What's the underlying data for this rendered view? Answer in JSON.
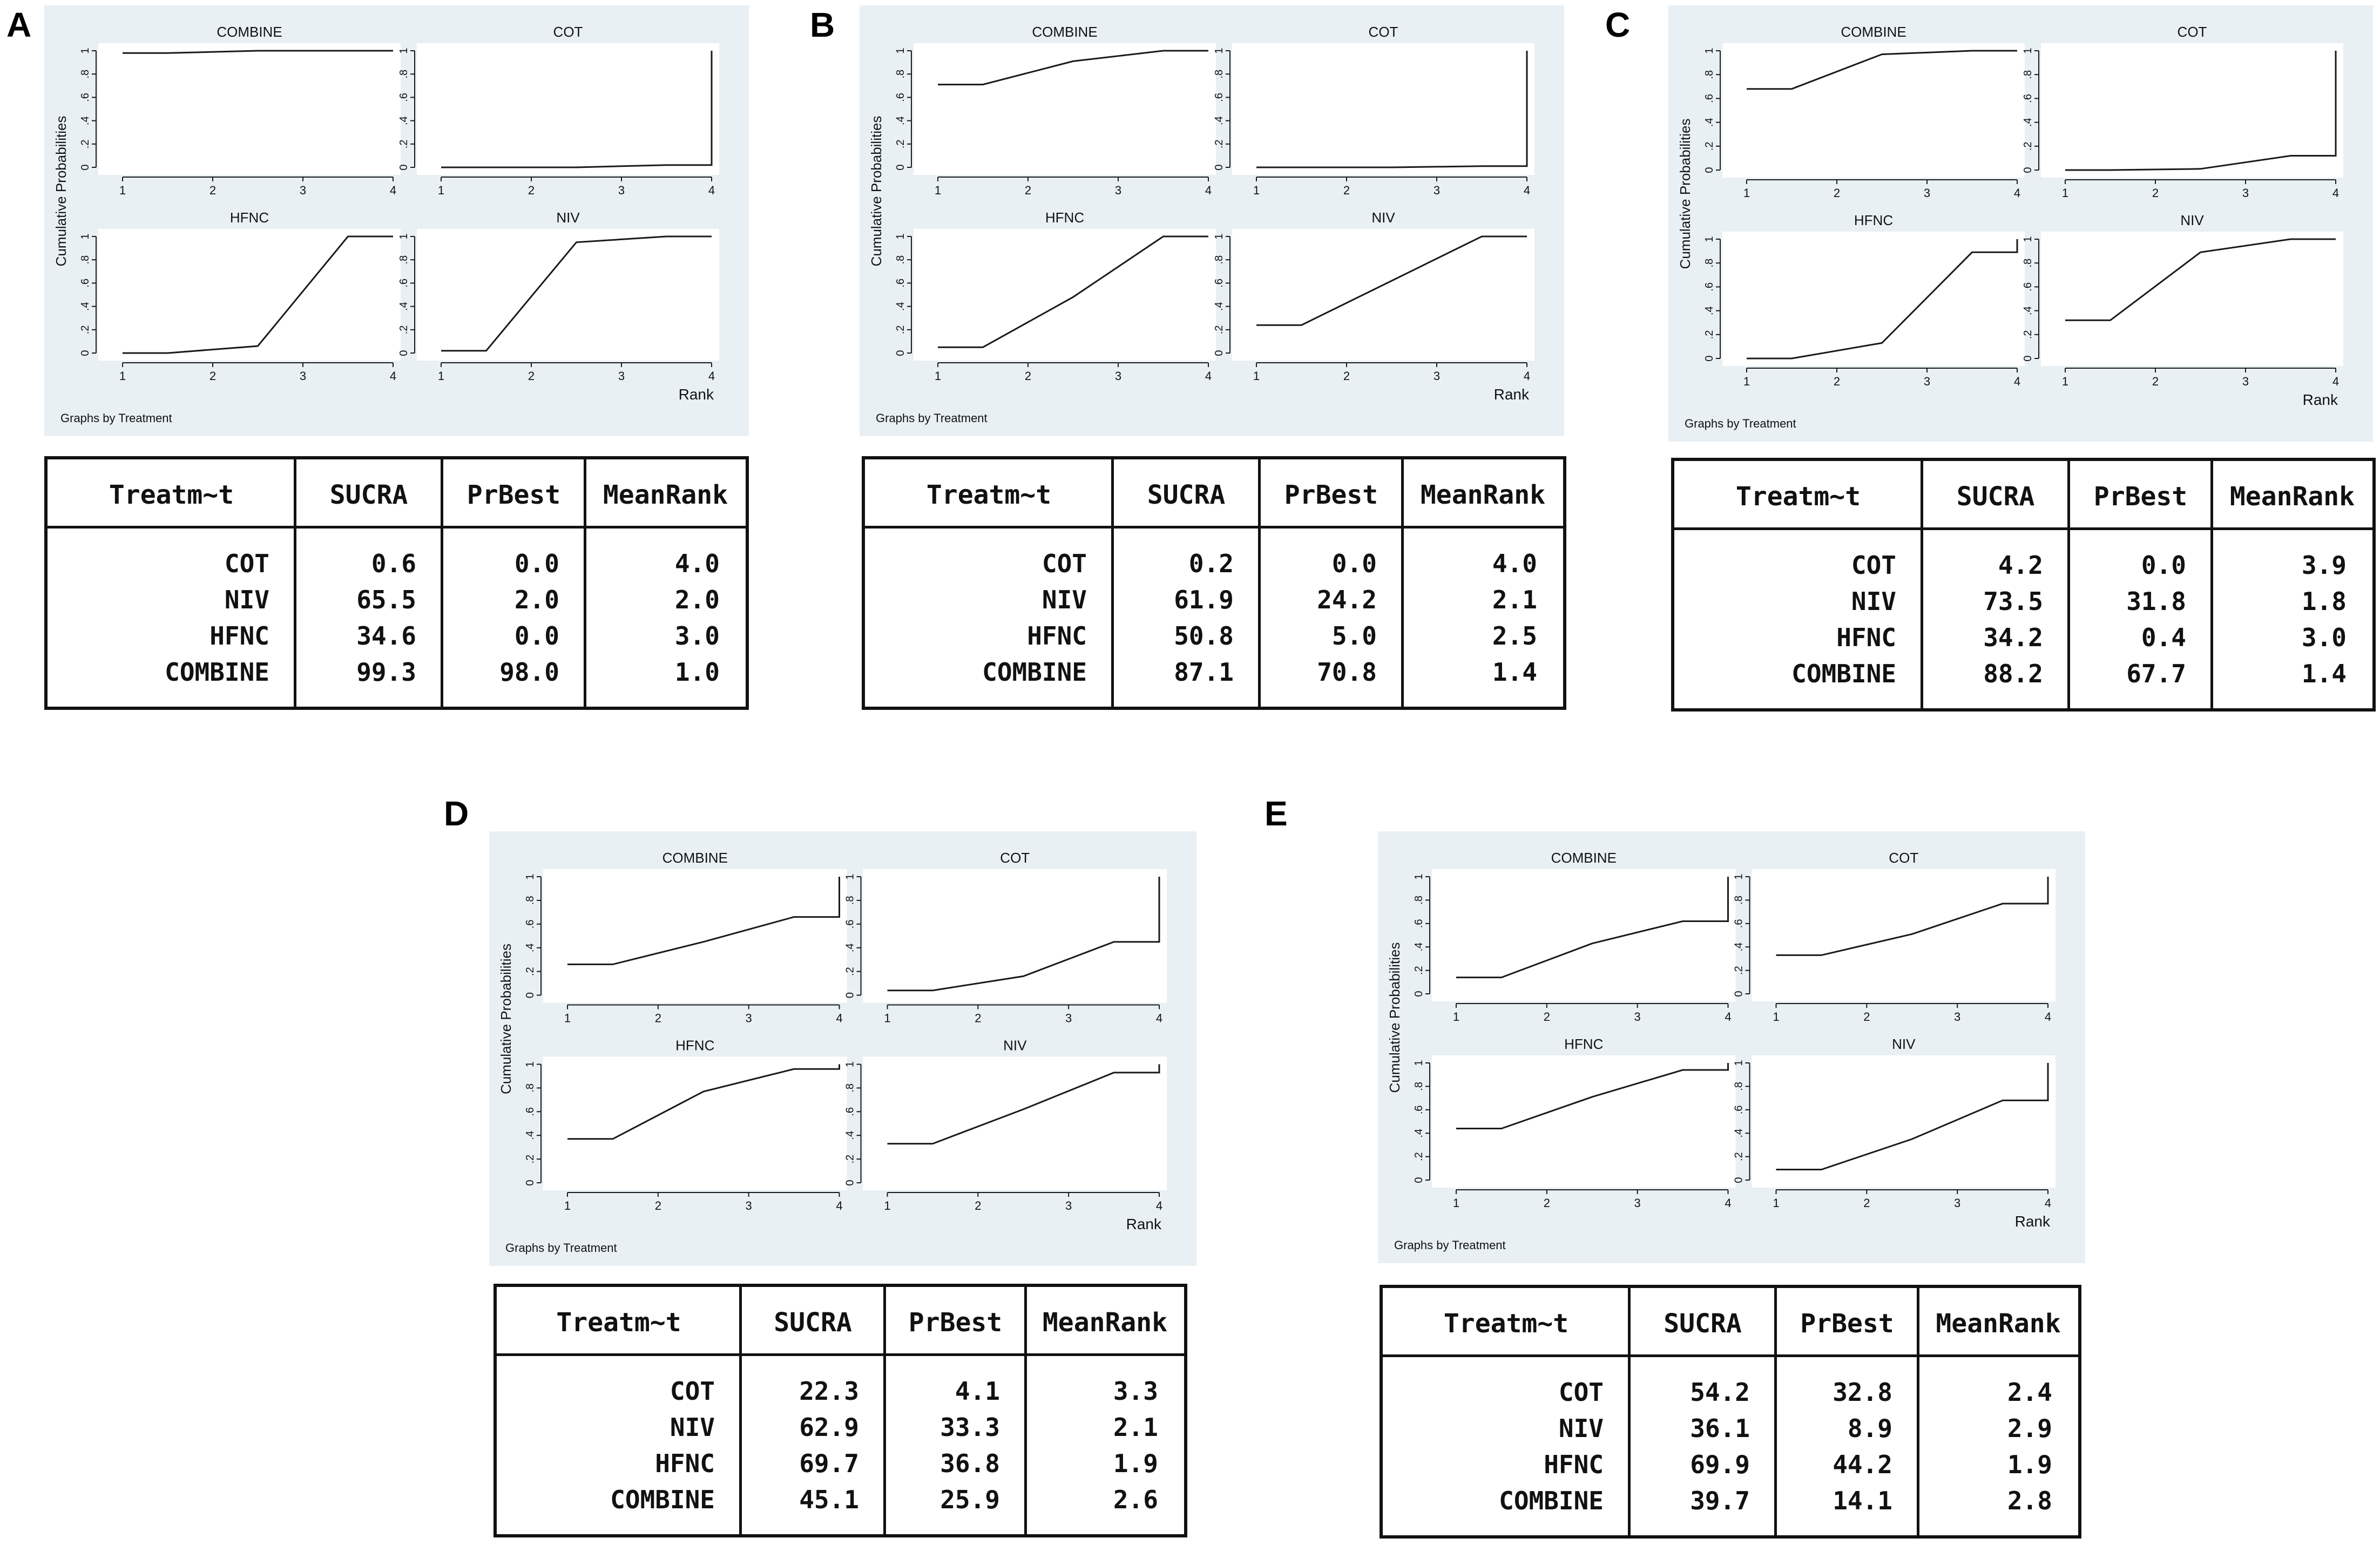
{
  "colors": {
    "graph_bg": "#e9f0f4",
    "plot_bg": "#ffffff",
    "line": "#1a1a1a",
    "text": "#111111"
  },
  "chart_data": [
    {
      "panel": "A",
      "type": "line",
      "title": "",
      "xlabel": "Rank",
      "ylabel": "Cumulative Probabilities",
      "note": "Graphs by Treatment",
      "xlim": [
        1,
        4
      ],
      "ylim": [
        0,
        1
      ],
      "xticks": [
        "1",
        "2",
        "3",
        "4"
      ],
      "yticks": [
        "0",
        ".2",
        ".4",
        ".6",
        ".8",
        "1"
      ],
      "series": [
        {
          "name": "COMBINE",
          "points": [
            [
              1,
              0.98
            ],
            [
              1.5,
              0.98
            ],
            [
              2.5,
              1.0
            ],
            [
              3.5,
              1.0
            ],
            [
              4,
              1.0
            ]
          ]
        },
        {
          "name": "COT",
          "points": [
            [
              1,
              0.0
            ],
            [
              1.5,
              0.0
            ],
            [
              2.5,
              0.0
            ],
            [
              3.5,
              0.02
            ],
            [
              4,
              0.02
            ],
            [
              4,
              1.0
            ]
          ]
        },
        {
          "name": "HFNC",
          "points": [
            [
              1,
              0.0
            ],
            [
              1.5,
              0.0
            ],
            [
              2.5,
              0.06
            ],
            [
              3.5,
              1.0
            ],
            [
              4,
              1.0
            ]
          ]
        },
        {
          "name": "NIV",
          "points": [
            [
              1,
              0.02
            ],
            [
              1.5,
              0.02
            ],
            [
              2.5,
              0.95
            ],
            [
              3.5,
              1.0
            ],
            [
              4,
              1.0
            ]
          ]
        }
      ],
      "table": {
        "headers": [
          "Treatm~t",
          "SUCRA",
          "PrBest",
          "MeanRank"
        ],
        "rows": [
          [
            "COT",
            "0.6",
            "0.0",
            "4.0"
          ],
          [
            "NIV",
            "65.5",
            "2.0",
            "2.0"
          ],
          [
            "HFNC",
            "34.6",
            "0.0",
            "3.0"
          ],
          [
            "COMBINE",
            "99.3",
            "98.0",
            "1.0"
          ]
        ]
      }
    },
    {
      "panel": "B",
      "type": "line",
      "title": "",
      "xlabel": "Rank",
      "ylabel": "Cumulative Probabilities",
      "note": "Graphs by Treatment",
      "xlim": [
        1,
        4
      ],
      "ylim": [
        0,
        1
      ],
      "xticks": [
        "1",
        "2",
        "3",
        "4"
      ],
      "yticks": [
        "0",
        ".2",
        ".4",
        ".6",
        ".8",
        "1"
      ],
      "series": [
        {
          "name": "COMBINE",
          "points": [
            [
              1,
              0.71
            ],
            [
              1.5,
              0.71
            ],
            [
              2.5,
              0.91
            ],
            [
              3.5,
              1.0
            ],
            [
              4,
              1.0
            ]
          ]
        },
        {
          "name": "COT",
          "points": [
            [
              1,
              0.0
            ],
            [
              1.5,
              0.0
            ],
            [
              2.5,
              0.0
            ],
            [
              3.5,
              0.01
            ],
            [
              4,
              0.01
            ],
            [
              4,
              1.0
            ]
          ]
        },
        {
          "name": "HFNC",
          "points": [
            [
              1,
              0.05
            ],
            [
              1.5,
              0.05
            ],
            [
              2.5,
              0.48
            ],
            [
              3.5,
              1.0
            ],
            [
              4,
              1.0
            ]
          ]
        },
        {
          "name": "NIV",
          "points": [
            [
              1,
              0.24
            ],
            [
              1.5,
              0.24
            ],
            [
              2.5,
              0.62
            ],
            [
              3.5,
              1.0
            ],
            [
              4,
              1.0
            ]
          ]
        }
      ],
      "table": {
        "headers": [
          "Treatm~t",
          "SUCRA",
          "PrBest",
          "MeanRank"
        ],
        "rows": [
          [
            "COT",
            "0.2",
            "0.0",
            "4.0"
          ],
          [
            "NIV",
            "61.9",
            "24.2",
            "2.1"
          ],
          [
            "HFNC",
            "50.8",
            "5.0",
            "2.5"
          ],
          [
            "COMBINE",
            "87.1",
            "70.8",
            "1.4"
          ]
        ]
      }
    },
    {
      "panel": "C",
      "type": "line",
      "title": "",
      "xlabel": "Rank",
      "ylabel": "Cumulative Probabilities",
      "note": "Graphs by Treatment",
      "xlim": [
        1,
        4
      ],
      "ylim": [
        0,
        1
      ],
      "xticks": [
        "1",
        "2",
        "3",
        "4"
      ],
      "yticks": [
        "0",
        ".2",
        ".4",
        ".6",
        ".8",
        "1"
      ],
      "series": [
        {
          "name": "COMBINE",
          "points": [
            [
              1,
              0.68
            ],
            [
              1.5,
              0.68
            ],
            [
              2.5,
              0.97
            ],
            [
              3.5,
              1.0
            ],
            [
              4,
              1.0
            ]
          ]
        },
        {
          "name": "COT",
          "points": [
            [
              1,
              0.0
            ],
            [
              1.5,
              0.0
            ],
            [
              2.5,
              0.01
            ],
            [
              3.5,
              0.12
            ],
            [
              4,
              0.12
            ],
            [
              4,
              1.0
            ]
          ]
        },
        {
          "name": "HFNC",
          "points": [
            [
              1,
              0.0
            ],
            [
              1.5,
              0.0
            ],
            [
              2.5,
              0.13
            ],
            [
              3.5,
              0.89
            ],
            [
              4,
              0.89
            ],
            [
              4,
              1.0
            ]
          ]
        },
        {
          "name": "NIV",
          "points": [
            [
              1,
              0.32
            ],
            [
              1.5,
              0.32
            ],
            [
              2.5,
              0.89
            ],
            [
              3.5,
              1.0
            ],
            [
              4,
              1.0
            ]
          ]
        }
      ],
      "table": {
        "headers": [
          "Treatm~t",
          "SUCRA",
          "PrBest",
          "MeanRank"
        ],
        "rows": [
          [
            "COT",
            "4.2",
            "0.0",
            "3.9"
          ],
          [
            "NIV",
            "73.5",
            "31.8",
            "1.8"
          ],
          [
            "HFNC",
            "34.2",
            "0.4",
            "3.0"
          ],
          [
            "COMBINE",
            "88.2",
            "67.7",
            "1.4"
          ]
        ]
      }
    },
    {
      "panel": "D",
      "type": "line",
      "title": "",
      "xlabel": "Rank",
      "ylabel": "Cumulative Probabilities",
      "note": "Graphs by Treatment",
      "xlim": [
        1,
        4
      ],
      "ylim": [
        0,
        1
      ],
      "xticks": [
        "1",
        "2",
        "3",
        "4"
      ],
      "yticks": [
        "0",
        ".2",
        ".4",
        ".6",
        ".8",
        "1"
      ],
      "series": [
        {
          "name": "COMBINE",
          "points": [
            [
              1,
              0.26
            ],
            [
              1.5,
              0.26
            ],
            [
              2.5,
              0.45
            ],
            [
              3.5,
              0.66
            ],
            [
              4,
              0.66
            ],
            [
              4,
              1.0
            ]
          ]
        },
        {
          "name": "COT",
          "points": [
            [
              1,
              0.04
            ],
            [
              1.5,
              0.04
            ],
            [
              2.5,
              0.16
            ],
            [
              3.5,
              0.45
            ],
            [
              4,
              0.45
            ],
            [
              4,
              1.0
            ]
          ]
        },
        {
          "name": "HFNC",
          "points": [
            [
              1,
              0.37
            ],
            [
              1.5,
              0.37
            ],
            [
              2.5,
              0.77
            ],
            [
              3.5,
              0.96
            ],
            [
              4,
              0.96
            ],
            [
              4,
              1.0
            ]
          ]
        },
        {
          "name": "NIV",
          "points": [
            [
              1,
              0.33
            ],
            [
              1.5,
              0.33
            ],
            [
              2.5,
              0.62
            ],
            [
              3.5,
              0.93
            ],
            [
              4,
              0.93
            ],
            [
              4,
              1.0
            ]
          ]
        }
      ],
      "table": {
        "headers": [
          "Treatm~t",
          "SUCRA",
          "PrBest",
          "MeanRank"
        ],
        "rows": [
          [
            "COT",
            "22.3",
            "4.1",
            "3.3"
          ],
          [
            "NIV",
            "62.9",
            "33.3",
            "2.1"
          ],
          [
            "HFNC",
            "69.7",
            "36.8",
            "1.9"
          ],
          [
            "COMBINE",
            "45.1",
            "25.9",
            "2.6"
          ]
        ]
      }
    },
    {
      "panel": "E",
      "type": "line",
      "title": "",
      "xlabel": "Rank",
      "ylabel": "Cumulative Probabilities",
      "note": "Graphs by Treatment",
      "xlim": [
        1,
        4
      ],
      "ylim": [
        0,
        1
      ],
      "xticks": [
        "1",
        "2",
        "3",
        "4"
      ],
      "yticks": [
        "0",
        ".2",
        ".4",
        ".6",
        ".8",
        "1"
      ],
      "series": [
        {
          "name": "COMBINE",
          "points": [
            [
              1,
              0.14
            ],
            [
              1.5,
              0.14
            ],
            [
              2.5,
              0.43
            ],
            [
              3.5,
              0.62
            ],
            [
              4,
              0.62
            ],
            [
              4,
              1.0
            ]
          ]
        },
        {
          "name": "COT",
          "points": [
            [
              1,
              0.33
            ],
            [
              1.5,
              0.33
            ],
            [
              2.5,
              0.51
            ],
            [
              3.5,
              0.77
            ],
            [
              4,
              0.77
            ],
            [
              4,
              1.0
            ]
          ]
        },
        {
          "name": "HFNC",
          "points": [
            [
              1,
              0.44
            ],
            [
              1.5,
              0.44
            ],
            [
              2.5,
              0.71
            ],
            [
              3.5,
              0.94
            ],
            [
              4,
              0.94
            ],
            [
              4,
              1.0
            ]
          ]
        },
        {
          "name": "NIV",
          "points": [
            [
              1,
              0.09
            ],
            [
              1.5,
              0.09
            ],
            [
              2.5,
              0.35
            ],
            [
              3.5,
              0.68
            ],
            [
              4,
              0.68
            ],
            [
              4,
              1.0
            ]
          ]
        }
      ],
      "table": {
        "headers": [
          "Treatm~t",
          "SUCRA",
          "PrBest",
          "MeanRank"
        ],
        "rows": [
          [
            "COT",
            "54.2",
            "32.8",
            "2.4"
          ],
          [
            "NIV",
            "36.1",
            "8.9",
            "2.9"
          ],
          [
            "HFNC",
            "69.9",
            "44.2",
            "1.9"
          ],
          [
            "COMBINE",
            "39.7",
            "14.1",
            "2.8"
          ]
        ]
      }
    }
  ]
}
